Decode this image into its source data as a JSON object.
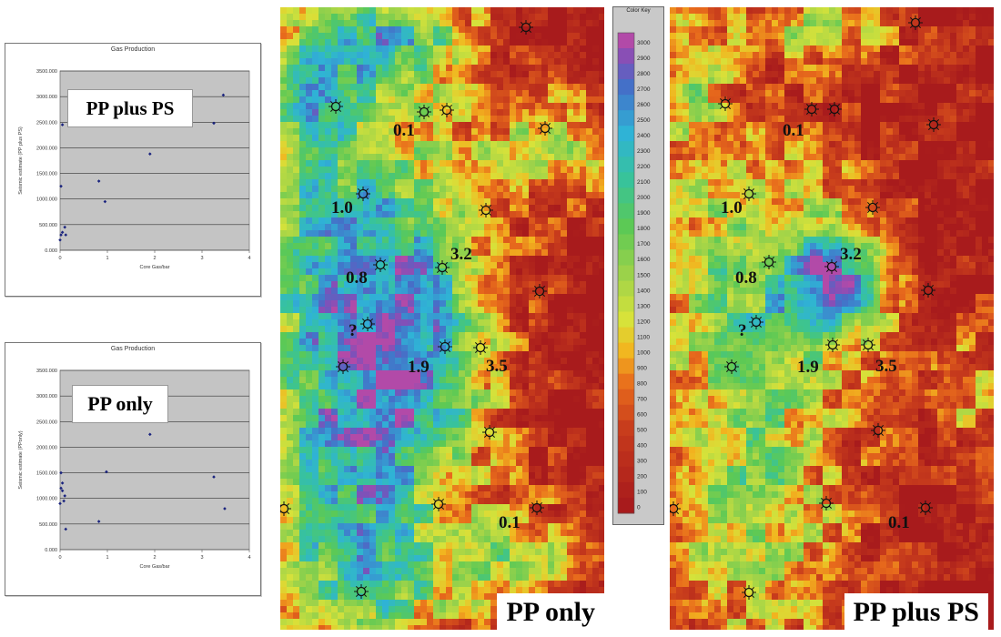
{
  "chart_data": [
    {
      "type": "scatter",
      "title": "Gas Production",
      "xlabel": "Core Gas/bar",
      "ylabel": "Seismic estimate (PP plus PS)",
      "legend_inset": "PP plus PS",
      "xlim": [
        0,
        4
      ],
      "ylim": [
        0,
        3500000
      ],
      "xticks": [
        "0",
        "1",
        "2",
        "3",
        "4"
      ],
      "yticks": [
        "0.000",
        "500.000",
        "1000.000",
        "1500.000",
        "2000.000",
        "2500.000",
        "3000.000",
        "3500.000"
      ],
      "grid": true,
      "color": "#1a237e",
      "x": [
        0.0,
        0.02,
        0.05,
        0.1,
        0.12,
        0.02,
        0.05,
        0.82,
        0.95,
        1.9,
        3.25,
        3.45
      ],
      "y": [
        200000,
        300000,
        350000,
        450000,
        300000,
        1250000,
        2450000,
        1350000,
        950000,
        1880000,
        2480000,
        3030000
      ]
    },
    {
      "type": "scatter",
      "title": "Gas Production",
      "xlabel": "Core Gas/bar",
      "ylabel": "Seismic estimate (PPonly)",
      "legend_inset": "PP only",
      "xlim": [
        0,
        4
      ],
      "ylim": [
        0,
        3500000
      ],
      "xticks": [
        "0",
        "1",
        "2",
        "3",
        "4"
      ],
      "yticks": [
        "0.000",
        "500.000",
        "1000.000",
        "1500.000",
        "2000.000",
        "2500.000",
        "3000.000",
        "3500.000"
      ],
      "grid": true,
      "color": "#1a237e",
      "x": [
        0.0,
        0.02,
        0.05,
        0.05,
        0.08,
        0.1,
        0.12,
        0.02,
        0.82,
        0.98,
        1.9,
        3.25,
        3.48
      ],
      "y": [
        900000,
        1200000,
        1300000,
        1150000,
        950000,
        1050000,
        400000,
        1500000,
        550000,
        1520000,
        2250000,
        1420000,
        800000
      ]
    },
    {
      "type": "heatmap",
      "title": "Color Key",
      "colorbar_labels": [
        "3000",
        "2900",
        "2800",
        "2700",
        "2600",
        "2500",
        "2400",
        "2300",
        "2200",
        "2100",
        "2000",
        "1900",
        "1800",
        "1700",
        "1600",
        "1500",
        "1400",
        "1300",
        "1200",
        "1100",
        "1000",
        "900",
        "800",
        "700",
        "600",
        "500",
        "400",
        "300",
        "200",
        "100",
        "0"
      ],
      "colors": {
        "0": "#a81b1c",
        "500": "#c63a1c",
        "800": "#e86b1c",
        "1000": "#f2b51f",
        "1200": "#d7e23a",
        "1500": "#9bd24a",
        "1800": "#5cc955",
        "2100": "#38c39a",
        "2400": "#2fb3d6",
        "2700": "#4470c8",
        "2900": "#8150b8",
        "3000": "#b24aa8"
      },
      "maps": [
        {
          "name": "PP only",
          "well_labels": [
            "0.1",
            "1.0",
            "3.2",
            "0.8",
            "?",
            "1.9",
            "3.5",
            "0.1"
          ]
        },
        {
          "name": "PP plus PS",
          "well_labels": [
            "0.1",
            "1.0",
            "3.2",
            "0.8",
            "?",
            "1.9",
            "3.5",
            "0.1"
          ]
        }
      ]
    }
  ]
}
